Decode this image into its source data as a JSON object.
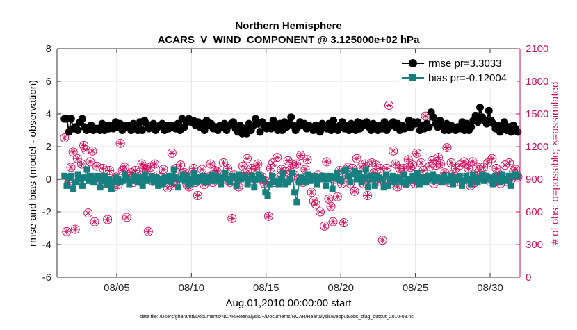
{
  "chart_data": {
    "type": "line",
    "title": "Northern Hemisphere",
    "subtitle": "ACARS_V_WIND_COMPONENT @ 3.125000e+02 hPa",
    "xlabel": "Aug.01,2010 00:00:00 start",
    "ylabel": "rmse and bias (model - observation)",
    "y2label": "# of obs: o=possible; ×=assimilated",
    "footnote": "data file: /Users/gharamti/Documents/NCAR/Reanalysis/~/Documents/NCAR/Reanalysis/webpub/obs_diag_output_2010-08.nc",
    "xlim": [
      1,
      32
    ],
    "ylim": [
      -6,
      8
    ],
    "y2lim": [
      0,
      2100
    ],
    "xticks": [
      5,
      10,
      15,
      20,
      25,
      30
    ],
    "xtick_labels": [
      "08/05",
      "08/10",
      "08/15",
      "08/20",
      "08/25",
      "08/30"
    ],
    "yticks": [
      -6,
      -4,
      -2,
      0,
      2,
      4,
      6,
      8
    ],
    "ytick_labels": [
      "-6",
      "-4",
      "-2",
      "0",
      "2",
      "4",
      "6",
      "8"
    ],
    "y2ticks": [
      0,
      300,
      600,
      900,
      1200,
      1500,
      1800,
      2100
    ],
    "y2tick_labels": [
      "0",
      "300",
      "600",
      "900",
      "1200",
      "1500",
      "1800",
      "2100"
    ],
    "legend_position": "top-right",
    "colors": {
      "rmse": "#000000",
      "bias": "#168080",
      "obs": "#d0105a",
      "zero_line": "#aaaaaa"
    },
    "series": [
      {
        "name": "rmse pr=3.3033",
        "axis": "left",
        "marker": "circle",
        "values": [
          3.7,
          3.7,
          2.9,
          3.7,
          3.1,
          3.2,
          3.0,
          3.5,
          3.7,
          3.2,
          3.0,
          3.2,
          3.3,
          3.0,
          3.1,
          3.1,
          3.0,
          3.4,
          3.0,
          3.3,
          3.1,
          3.3,
          3.1,
          3.5,
          3.2,
          3.4,
          3.0,
          3.3,
          3.2,
          3.3,
          3.0,
          3.4,
          3.2,
          3.0,
          3.5,
          3.0,
          3.6,
          3.4,
          3.1,
          3.2,
          3.4,
          3.0,
          3.2,
          3.3,
          3.4,
          3.0,
          3.3,
          3.1,
          3.3,
          3.2,
          3.1,
          3.4,
          3.0,
          3.7,
          3.2,
          3.5,
          3.7,
          3.5,
          3.6,
          3.3,
          3.5,
          3.2,
          3.4,
          3.0,
          3.6,
          3.3,
          3.4,
          3.1,
          3.2,
          3.0,
          3.3,
          3.2,
          3.4,
          3.0,
          3.3,
          3.4,
          3.5,
          3.1,
          2.9,
          3.3,
          2.8,
          3.1,
          2.8,
          3.4,
          3.0,
          3.3,
          3.7,
          3.4,
          2.9,
          3.5,
          3.3,
          3.1,
          3.3,
          3.1,
          3.6,
          3.4,
          3.0,
          3.4,
          3.0,
          3.5,
          3.2,
          3.4,
          3.8,
          3.3,
          3.0,
          3.2,
          3.5,
          3.3,
          3.4,
          3.1,
          3.3,
          3.2,
          3.0,
          3.3,
          3.2,
          2.9,
          3.4,
          3.2,
          3.1,
          3.4,
          3.0,
          3.6,
          3.2,
          3.0,
          3.3,
          3.5,
          3.1,
          3.3,
          3.0,
          3.4,
          3.2,
          3.0,
          3.5,
          3.1,
          3.4,
          3.3,
          3.5,
          3.2,
          3.0,
          3.4,
          3.2,
          3.0,
          3.3,
          3.1,
          3.5,
          3.0,
          3.2,
          3.4,
          3.5,
          3.2,
          3.4,
          3.0,
          3.3,
          3.1,
          3.2,
          3.6,
          3.2,
          3.5,
          3.4,
          3.5,
          3.0,
          3.3,
          3.1,
          3.4,
          3.2,
          4.1,
          3.8,
          3.4,
          3.2,
          3.6,
          3.3,
          3.0,
          3.4,
          3.0,
          3.3,
          3.1,
          3.0,
          3.2,
          3.1,
          3.5,
          3.0,
          3.4,
          3.0,
          3.2,
          3.6,
          3.9,
          3.5,
          4.4,
          3.8,
          3.6,
          3.4,
          4.2,
          3.6,
          3.4,
          3.1,
          3.3,
          2.9,
          3.2,
          3.5,
          3.0,
          3.2,
          2.9,
          3.3,
          3.1,
          2.9
        ]
      },
      {
        "name": "bias pr=-0.12004",
        "axis": "left",
        "marker": "square",
        "values": [
          0.2,
          -0.4,
          0.1,
          0.2,
          -0.6,
          -0.2,
          0.3,
          0.0,
          -0.4,
          0.1,
          0.6,
          -0.1,
          0.2,
          -0.2,
          0.0,
          0.2,
          -0.5,
          -0.1,
          0.2,
          -0.3,
          0.0,
          -0.6,
          -0.2,
          0.1,
          0.0,
          -0.2,
          -0.1,
          0.3,
          0.0,
          -0.3,
          -0.1,
          0.2,
          0.0,
          -0.2,
          0.1,
          -0.4,
          0.3,
          -0.1,
          0.0,
          0.2,
          -0.2,
          0.1,
          -0.4,
          0.0,
          -0.3,
          0.1,
          -0.1,
          0.2,
          -0.2,
          0.6,
          0.1,
          -0.5,
          0.0,
          0.3,
          -0.1,
          0.2,
          -0.3,
          0.0,
          0.4,
          -0.2,
          0.1,
          -0.1,
          0.2,
          0.0,
          -0.2,
          0.1,
          0.3,
          -0.1,
          0.2,
          0.0,
          -0.3,
          0.1,
          0.4,
          0.0,
          -0.2,
          0.2,
          0.1,
          -0.4,
          0.3,
          0.0,
          0.1,
          0.2,
          -0.3,
          0.0,
          0.2,
          -0.5,
          0.0,
          0.3,
          0.1,
          0.0,
          -0.8,
          -1.0,
          -0.3,
          0.2,
          -0.1,
          -0.2,
          -0.3,
          0.0,
          0.4,
          -0.3,
          -0.2,
          0.0,
          0.4,
          -0.8,
          -1.4,
          -0.2,
          0.1,
          0.0,
          -0.2,
          0.3,
          -0.1,
          0.0,
          0.2,
          -0.3,
          0.1,
          0.0,
          0.2,
          -0.4,
          0.0,
          0.2,
          -0.6,
          0.1,
          0.4,
          0.0,
          -0.1,
          0.5,
          0.6,
          0.2,
          -0.2,
          0.3,
          0.5,
          0.0,
          0.4,
          -0.2,
          0.1,
          0.6,
          -0.5,
          0.2,
          0.0,
          -0.4,
          0.2,
          0.1,
          0.0,
          -0.5,
          0.3,
          -0.4,
          0.0,
          0.2,
          -0.2,
          0.1,
          0.0,
          -0.2,
          0.3,
          -0.3,
          0.0,
          -0.1,
          0.2,
          0.0,
          0.4,
          -0.3,
          0.1,
          0.0,
          -0.2,
          0.2,
          0.0,
          0.3,
          -0.1,
          0.1,
          0.0,
          -0.2,
          0.2,
          -0.1,
          0.0,
          0.2,
          -0.3,
          0.1,
          0.0,
          0.2,
          -0.4,
          -0.1,
          0.2,
          0.0,
          -0.3,
          0.3,
          0.1,
          -0.2,
          0.0,
          0.3,
          -0.1,
          0.2,
          0.0,
          0.1,
          -0.3,
          0.2,
          0.0,
          -0.2,
          0.3,
          0.0,
          -0.1,
          0.2,
          -0.4,
          0.2,
          0.3,
          0.2
        ]
      },
      {
        "name": "obs possible",
        "axis": "right",
        "marker": "circle-open",
        "values": [
          1280,
          420,
          870,
          1010,
          1150,
          440,
          1090,
          900,
          1040,
          1210,
          1170,
          590,
          1060,
          1160,
          510,
          1020,
          900,
          860,
          1000,
          860,
          530,
          980,
          880,
          830,
          920,
          850,
          1230,
          980,
          1010,
          550,
          940,
          960,
          870,
          980,
          930,
          880,
          1040,
          1000,
          990,
          420,
          1010,
          880,
          1040,
          930,
          860,
          920,
          990,
          900,
          820,
          870,
          1140,
          840,
          1000,
          910,
          1030,
          950,
          960,
          850,
          830,
          920,
          1000,
          870,
          750,
          930,
          990,
          850,
          880,
          920,
          1040,
          870,
          980,
          970,
          890,
          890,
          1050,
          920,
          1000,
          870,
          540,
          940,
          880,
          830,
          920,
          1020,
          960,
          1090,
          920,
          1000,
          880,
          990,
          1040,
          900,
          920,
          860,
          880,
          560,
          1000,
          1050,
          870,
          1100,
          920,
          990,
          890,
          970,
          1070,
          980,
          1040,
          940,
          1040,
          900,
          1120,
          870,
          990,
          1080,
          910,
          780,
          700,
          670,
          940,
          600,
          920,
          470,
          1060,
          720,
          650,
          510,
          900,
          740,
          980,
          860,
          500,
          920,
          1010,
          860,
          1000,
          790,
          1090,
          920,
          1010,
          860,
          1040,
          750,
          880,
          1050,
          960,
          1030,
          880,
          1000,
          340,
          870,
          1000,
          1580,
          860,
          1160,
          1040,
          830,
          1000,
          950,
          1000,
          860,
          1080,
          1010,
          1030,
          860,
          1140,
          940,
          1050,
          980,
          1480,
          900,
          1020,
          1070,
          860,
          1030,
          1100,
          1040,
          900,
          960,
          1190,
          870,
          1050,
          950,
          1000,
          880,
          1030,
          900,
          1060,
          1040,
          1000,
          840,
          1060,
          870,
          1010,
          930,
          950,
          1010,
          920,
          1050,
          880,
          1090,
          870,
          1000,
          950,
          860,
          920,
          1030,
          880,
          1050,
          900,
          970,
          990,
          920
        ]
      },
      {
        "name": "obs assimilated",
        "axis": "right",
        "marker": "asterisk",
        "values": [
          1280,
          420,
          870,
          1010,
          1150,
          440,
          1090,
          900,
          1040,
          1210,
          1170,
          590,
          1060,
          1160,
          510,
          1020,
          900,
          860,
          1000,
          860,
          530,
          980,
          880,
          830,
          920,
          850,
          1230,
          980,
          1010,
          550,
          940,
          960,
          870,
          980,
          930,
          880,
          1040,
          1000,
          990,
          420,
          1010,
          880,
          1040,
          930,
          860,
          920,
          990,
          900,
          820,
          870,
          1140,
          840,
          1000,
          910,
          1030,
          950,
          960,
          850,
          830,
          920,
          1000,
          870,
          750,
          930,
          990,
          850,
          880,
          920,
          1040,
          870,
          980,
          970,
          890,
          890,
          1050,
          920,
          1000,
          870,
          540,
          940,
          880,
          830,
          920,
          1020,
          960,
          1090,
          920,
          1000,
          880,
          990,
          1040,
          900,
          920,
          860,
          880,
          560,
          1000,
          1050,
          870,
          1100,
          920,
          990,
          890,
          970,
          1070,
          980,
          1040,
          940,
          1040,
          900,
          1120,
          870,
          990,
          1080,
          910,
          780,
          700,
          670,
          940,
          600,
          920,
          470,
          1060,
          720,
          650,
          510,
          900,
          740,
          980,
          860,
          500,
          920,
          1010,
          860,
          1000,
          790,
          1090,
          920,
          1010,
          860,
          1040,
          750,
          880,
          1050,
          960,
          1030,
          880,
          1000,
          340,
          870,
          1000,
          1580,
          860,
          1160,
          1040,
          830,
          1000,
          950,
          1000,
          860,
          1080,
          1010,
          1030,
          860,
          1140,
          940,
          1050,
          980,
          1480,
          900,
          1020,
          1070,
          860,
          1030,
          1100,
          1040,
          900,
          960,
          1190,
          870,
          1050,
          950,
          1000,
          880,
          1030,
          900,
          1060,
          1040,
          1000,
          840,
          1060,
          870,
          1010,
          930,
          950,
          1010,
          920,
          1050,
          880,
          1090,
          870,
          1000,
          950,
          860,
          920,
          1030,
          880,
          1050,
          900,
          970,
          990,
          920
        ]
      }
    ]
  }
}
